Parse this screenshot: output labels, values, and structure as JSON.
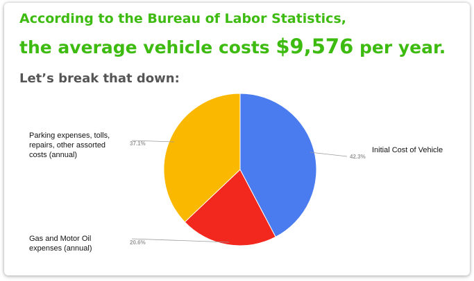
{
  "header": {
    "line1": "According to the Bureau of Labor Statistics,",
    "line2_prefix": "the average vehicle costs ",
    "line2_amount": "$9,576",
    "line2_suffix": " per year.",
    "subtitle": "Let’s break that down:"
  },
  "colors": {
    "headline": "#3dbb10",
    "subtitle": "#555555"
  },
  "chart_data": {
    "type": "pie",
    "slices": [
      {
        "label": "Initial Cost of Vehicle",
        "value": 42.3,
        "display": "42.3%",
        "color": "#4a7cf0"
      },
      {
        "label": "Gas and Motor Oil expenses (annual)",
        "value": 20.6,
        "display": "20.6%",
        "color": "#f2281f"
      },
      {
        "label": "Parking expenses, tolls, repairs, other assorted costs (annual)",
        "value": 37.1,
        "display": "37.1%",
        "color": "#fbb800"
      }
    ]
  }
}
